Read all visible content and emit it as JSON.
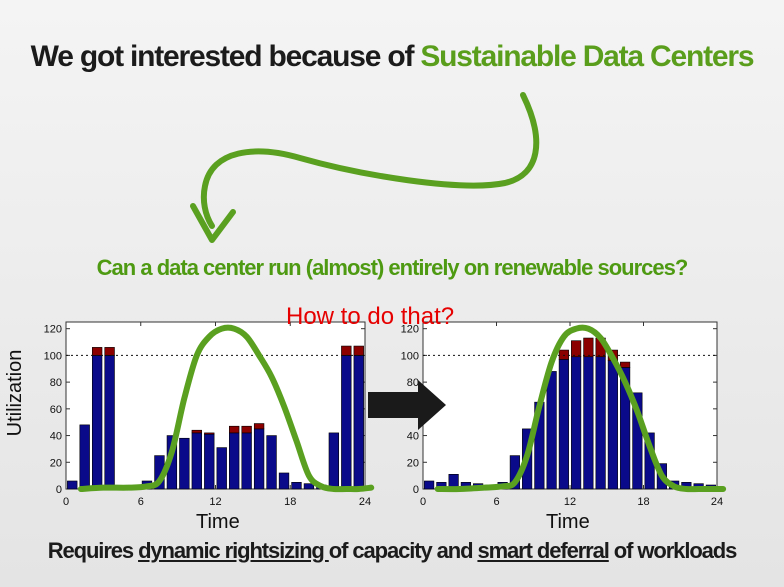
{
  "slide": {
    "title_prefix": "We got interested because of ",
    "title_highlight": "Sustainable Data Centers",
    "question": "Can a data center run (almost) entirely on renewable sources?",
    "overlay_note": "How to do that?",
    "footer": {
      "part1": "Requires ",
      "link1": "dynamic rightsizing ",
      "part2": "of capacity and ",
      "link2": "smart deferral",
      "part3": " of workloads"
    },
    "arrow_icon": "right-arrow-icon"
  },
  "colors": {
    "title_highlight": "#5a9e1c",
    "question": "#4e9a12",
    "overlay_note": "#e60000",
    "bar_base": "#0a0a8a",
    "bar_overflow": "#8b0000",
    "supply_curve": "#5aa020",
    "arrow": "#1a1a1a"
  },
  "chart_data": [
    {
      "type": "bar",
      "stacked": true,
      "xlabel": "Time",
      "ylabel": "Utilization",
      "xlim": [
        0,
        24
      ],
      "ylim": [
        0,
        125
      ],
      "xticks": [
        "0",
        "6",
        "12",
        "18",
        "24"
      ],
      "yticks": [
        "0",
        "20",
        "40",
        "60",
        "80",
        "100",
        "120"
      ],
      "capacity_line": 100,
      "x": [
        1,
        2,
        3,
        4,
        5,
        6,
        7,
        8,
        9,
        10,
        11,
        12,
        13,
        14,
        15,
        16,
        17,
        18,
        19,
        20,
        21,
        22,
        23,
        24
      ],
      "series": [
        {
          "values": [
            6,
            48,
            100,
            100,
            0,
            0,
            6,
            25,
            40,
            38,
            42,
            41,
            31,
            42,
            42,
            45,
            40,
            12,
            5,
            4,
            3,
            42,
            100,
            100
          ]
        },
        {
          "values": [
            0,
            0,
            6,
            6,
            0,
            0,
            0,
            0,
            0,
            0,
            2,
            1,
            0,
            5,
            5,
            4,
            0,
            0,
            0,
            0,
            0,
            0,
            7,
            7
          ]
        }
      ],
      "supply_curve": {
        "x": [
          1.2,
          3,
          5,
          6.5,
          7.5,
          8.5,
          9.5,
          10.5,
          11.5,
          12.5,
          13.5,
          14.5,
          15.5,
          16.5,
          17.5,
          18.5,
          19.5,
          20.5,
          21.5,
          22.5,
          23.5,
          24.5
        ],
        "y": [
          0,
          1,
          1,
          2,
          6,
          28,
          68,
          100,
          114,
          120,
          120,
          114,
          100,
          84,
          62,
          36,
          10,
          2,
          0,
          0,
          0,
          1
        ]
      }
    },
    {
      "type": "bar",
      "stacked": true,
      "xlabel": "Time",
      "xlim": [
        0,
        24
      ],
      "ylim": [
        0,
        125
      ],
      "xticks": [
        "0",
        "6",
        "12",
        "18",
        "24"
      ],
      "yticks": [
        "0",
        "20",
        "40",
        "60",
        "80",
        "100",
        "120"
      ],
      "capacity_line": 100,
      "x": [
        1,
        2,
        3,
        4,
        5,
        6,
        7,
        8,
        9,
        10,
        11,
        12,
        13,
        14,
        15,
        16,
        17,
        18,
        19,
        20,
        21,
        22,
        23,
        24
      ],
      "series": [
        {
          "values": [
            6,
            5,
            11,
            5,
            4,
            3,
            5,
            25,
            45,
            65,
            88,
            97,
            99,
            99,
            99,
            96,
            91,
            72,
            42,
            19,
            6,
            5,
            4,
            3
          ]
        },
        {
          "values": [
            0,
            0,
            0,
            0,
            0,
            0,
            0,
            0,
            0,
            0,
            0,
            7,
            12,
            14,
            14,
            8,
            4,
            0,
            0,
            0,
            0,
            0,
            0,
            0
          ]
        }
      ],
      "supply_curve": {
        "x": [
          1.2,
          3,
          5,
          6.5,
          7.5,
          8.5,
          9.5,
          10.5,
          11.5,
          12.5,
          13.5,
          14.5,
          15.5,
          16.5,
          17.5,
          18.5,
          19.5,
          20.5,
          21.5,
          22.5,
          23.5,
          24.5
        ],
        "y": [
          0,
          0,
          1,
          2,
          5,
          25,
          62,
          95,
          114,
          120,
          120,
          113,
          98,
          80,
          58,
          32,
          10,
          2,
          0,
          0,
          0,
          0
        ]
      }
    }
  ]
}
